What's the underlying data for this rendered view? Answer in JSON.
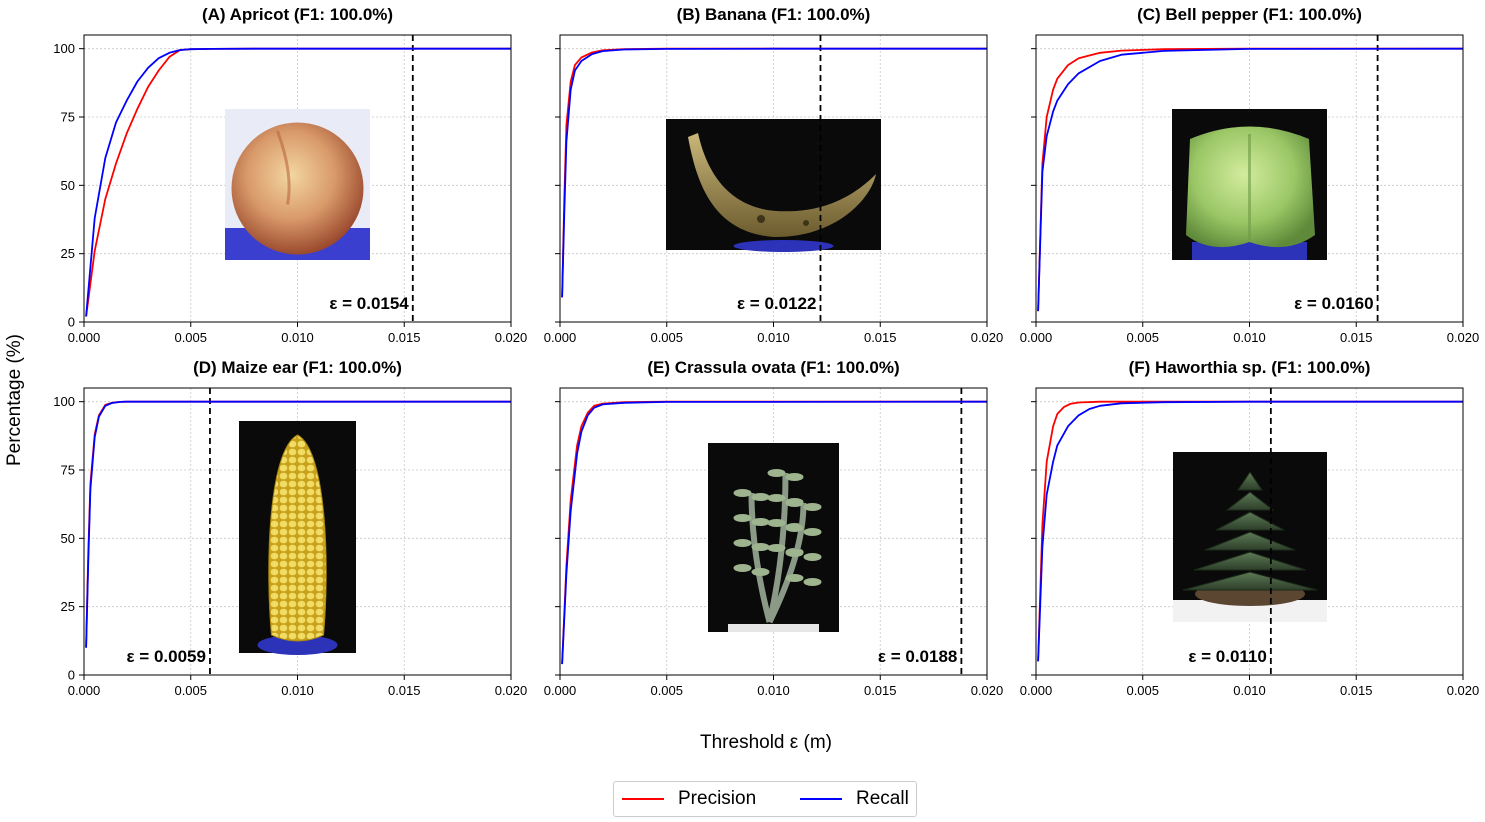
{
  "figure": {
    "xlabel": "Threshold ε (m)",
    "ylabel": "Percentage (%)",
    "legend": [
      {
        "name": "Precision",
        "color": "#ff0000"
      },
      {
        "name": "Recall",
        "color": "#0000ff"
      }
    ]
  },
  "chart_data": [
    {
      "type": "line",
      "title": "(A) Apricot (F1: 100.0%)",
      "xlim": [
        0,
        0.02
      ],
      "ylim": [
        0,
        105
      ],
      "xticks": [
        "0.000",
        "0.005",
        "0.010",
        "0.015",
        "0.020"
      ],
      "yticks": [
        "0",
        "25",
        "50",
        "75",
        "100"
      ],
      "grid": true,
      "threshold": 0.0154,
      "threshold_label": "ε = 0.0154",
      "photo": "apricot",
      "series": [
        {
          "name": "Precision",
          "color": "#ff0000",
          "x": [
            0.0001,
            0.0005,
            0.001,
            0.0015,
            0.002,
            0.0025,
            0.003,
            0.0035,
            0.004,
            0.0045,
            0.005,
            0.006,
            0.008,
            0.01,
            0.015,
            0.02
          ],
          "y": [
            2,
            26,
            45,
            58,
            69,
            78,
            86,
            92,
            97,
            99.5,
            99.8,
            99.9,
            100,
            100,
            100,
            100
          ]
        },
        {
          "name": "Recall",
          "color": "#0000ff",
          "x": [
            0.0001,
            0.0005,
            0.001,
            0.0015,
            0.002,
            0.0025,
            0.003,
            0.0035,
            0.004,
            0.0045,
            0.005,
            0.006,
            0.008,
            0.01,
            0.015,
            0.02
          ],
          "y": [
            2,
            38,
            60,
            73,
            81,
            88,
            93,
            96.5,
            98.5,
            99.5,
            99.8,
            99.9,
            100,
            100,
            100,
            100
          ]
        }
      ]
    },
    {
      "type": "line",
      "title": "(B) Banana (F1: 100.0%)",
      "xlim": [
        0,
        0.02
      ],
      "ylim": [
        0,
        105
      ],
      "xticks": [
        "0.000",
        "0.005",
        "0.010",
        "0.015",
        "0.020"
      ],
      "yticks": [
        "0",
        "25",
        "50",
        "75",
        "100"
      ],
      "grid": true,
      "threshold": 0.0122,
      "threshold_label": "ε = 0.0122",
      "photo": "banana",
      "series": [
        {
          "name": "Precision",
          "color": "#ff0000",
          "x": [
            0.0001,
            0.0002,
            0.0003,
            0.0005,
            0.0007,
            0.001,
            0.0015,
            0.002,
            0.003,
            0.005,
            0.01,
            0.02
          ],
          "y": [
            9,
            45,
            72,
            88,
            94,
            96.8,
            98.6,
            99.4,
            99.8,
            100,
            100,
            100
          ]
        },
        {
          "name": "Recall",
          "color": "#0000ff",
          "x": [
            0.0001,
            0.0002,
            0.0003,
            0.0005,
            0.0007,
            0.001,
            0.0015,
            0.002,
            0.003,
            0.005,
            0.01,
            0.02
          ],
          "y": [
            9,
            40,
            66,
            85,
            92,
            95.5,
            98,
            99.1,
            99.7,
            99.9,
            100,
            100
          ]
        }
      ]
    },
    {
      "type": "line",
      "title": "(C) Bell pepper (F1: 100.0%)",
      "xlim": [
        0,
        0.02
      ],
      "ylim": [
        0,
        105
      ],
      "xticks": [
        "0.000",
        "0.005",
        "0.010",
        "0.015",
        "0.020"
      ],
      "yticks": [
        "0",
        "25",
        "50",
        "75",
        "100"
      ],
      "grid": true,
      "threshold": 0.016,
      "threshold_label": "ε = 0.0160",
      "photo": "bell-pepper",
      "series": [
        {
          "name": "Precision",
          "color": "#ff0000",
          "x": [
            0.0001,
            0.0003,
            0.0005,
            0.0008,
            0.001,
            0.0015,
            0.002,
            0.003,
            0.004,
            0.006,
            0.01,
            0.02
          ],
          "y": [
            4,
            58,
            75,
            85,
            89,
            94,
            96.5,
            98.5,
            99.3,
            99.8,
            100,
            100
          ]
        },
        {
          "name": "Recall",
          "color": "#0000ff",
          "x": [
            0.0001,
            0.0003,
            0.0005,
            0.0008,
            0.001,
            0.0015,
            0.002,
            0.003,
            0.004,
            0.006,
            0.01,
            0.02
          ],
          "y": [
            4,
            55,
            68,
            77,
            81,
            87,
            91,
            95.5,
            97.8,
            99.2,
            99.9,
            100
          ]
        }
      ]
    },
    {
      "type": "line",
      "title": "(D) Maize ear (F1: 100.0%)",
      "xlim": [
        0,
        0.02
      ],
      "ylim": [
        0,
        105
      ],
      "xticks": [
        "0.000",
        "0.005",
        "0.010",
        "0.015",
        "0.020"
      ],
      "yticks": [
        "0",
        "25",
        "50",
        "75",
        "100"
      ],
      "grid": true,
      "threshold": 0.0059,
      "threshold_label": "ε = 0.0059",
      "photo": "maize-ear",
      "series": [
        {
          "name": "Precision",
          "color": "#ff0000",
          "x": [
            0.0001,
            0.0002,
            0.0003,
            0.0005,
            0.0007,
            0.001,
            0.0013,
            0.0017,
            0.002,
            0.005,
            0.02
          ],
          "y": [
            10,
            45,
            70,
            88,
            95,
            98.8,
            99.6,
            99.9,
            100,
            100,
            100
          ]
        },
        {
          "name": "Recall",
          "color": "#0000ff",
          "x": [
            0.0001,
            0.0002,
            0.0003,
            0.0005,
            0.0007,
            0.001,
            0.0013,
            0.0017,
            0.002,
            0.005,
            0.02
          ],
          "y": [
            10,
            42,
            68,
            87,
            94.5,
            98.5,
            99.5,
            99.9,
            100,
            100,
            100
          ]
        }
      ]
    },
    {
      "type": "line",
      "title": "(E) Crassula ovata (F1: 100.0%)",
      "xlim": [
        0,
        0.02
      ],
      "ylim": [
        0,
        105
      ],
      "xticks": [
        "0.000",
        "0.005",
        "0.010",
        "0.015",
        "0.020"
      ],
      "yticks": [
        "0",
        "25",
        "50",
        "75",
        "100"
      ],
      "grid": true,
      "threshold": 0.0188,
      "threshold_label": "ε = 0.0188",
      "photo": "crassula-ovata",
      "series": [
        {
          "name": "Precision",
          "color": "#ff0000",
          "x": [
            0.0001,
            0.0003,
            0.0005,
            0.0008,
            0.001,
            0.0013,
            0.0016,
            0.002,
            0.003,
            0.005,
            0.02
          ],
          "y": [
            4,
            40,
            64,
            84,
            91,
            96,
            98.5,
            99.3,
            99.8,
            100,
            100
          ]
        },
        {
          "name": "Recall",
          "color": "#0000ff",
          "x": [
            0.0001,
            0.0003,
            0.0005,
            0.0008,
            0.001,
            0.0013,
            0.0016,
            0.002,
            0.003,
            0.005,
            0.02
          ],
          "y": [
            4,
            37,
            60,
            81,
            89,
            95,
            97.8,
            99,
            99.6,
            99.9,
            100
          ]
        }
      ]
    },
    {
      "type": "line",
      "title": "(F) Haworthia sp. (F1: 100.0%)",
      "xlim": [
        0,
        0.02
      ],
      "ylim": [
        0,
        105
      ],
      "xticks": [
        "0.000",
        "0.005",
        "0.010",
        "0.015",
        "0.020"
      ],
      "yticks": [
        "0",
        "25",
        "50",
        "75",
        "100"
      ],
      "grid": true,
      "threshold": 0.011,
      "threshold_label": "ε = 0.0110",
      "photo": "haworthia",
      "series": [
        {
          "name": "Precision",
          "color": "#ff0000",
          "x": [
            0.0001,
            0.0003,
            0.0005,
            0.0008,
            0.001,
            0.0013,
            0.0016,
            0.002,
            0.003,
            0.005,
            0.02
          ],
          "y": [
            5,
            55,
            78,
            91,
            95.5,
            98,
            99.2,
            99.7,
            100,
            100,
            100
          ]
        },
        {
          "name": "Recall",
          "color": "#0000ff",
          "x": [
            0.0001,
            0.0003,
            0.0005,
            0.0008,
            0.001,
            0.0015,
            0.002,
            0.0025,
            0.003,
            0.004,
            0.006,
            0.01,
            0.02
          ],
          "y": [
            5,
            47,
            66,
            78,
            84,
            91,
            95,
            97.3,
            98.5,
            99.4,
            99.8,
            100,
            100
          ]
        }
      ]
    }
  ]
}
